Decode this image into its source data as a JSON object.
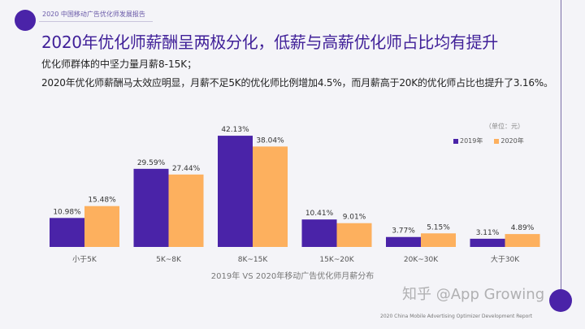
{
  "header": {
    "report_title": "2020 中国移动广告优化师发展报告",
    "headline": "2020年优化师薪酬呈两极分化，低薪与高薪优化师占比均有提升",
    "subtitle_1": "优化师群体的中坚力量月薪8-15K；",
    "subtitle_2": "2020年优化师薪酬马太效应明显，月薪不足5K的优化师比例增加4.5%，而月薪高于20K的优化师占比也提升了3.16%。"
  },
  "chart_data": {
    "type": "bar",
    "title": "2019年 VS 2020年移动广告优化师月薪分布",
    "unit_note": "（单位：元）",
    "categories": [
      "小于5K",
      "5K~8K",
      "8K~15K",
      "15K~20K",
      "20K~30K",
      "大于30K"
    ],
    "series": [
      {
        "name": "2019年",
        "color": "#4a23a8",
        "values": [
          10.98,
          29.59,
          42.13,
          10.41,
          3.77,
          3.11
        ],
        "labels": [
          "10.98%",
          "29.59%",
          "42.13%",
          "10.41%",
          "3.77%",
          "3.11%"
        ]
      },
      {
        "name": "2020年",
        "color": "#fdb05e",
        "values": [
          15.48,
          27.44,
          38.04,
          9.01,
          5.15,
          4.89
        ],
        "labels": [
          "15.48%",
          "27.44%",
          "38.04%",
          "9.01%",
          "5.15%",
          "4.89%"
        ]
      }
    ],
    "ylim": [
      0,
      45
    ],
    "grid": false,
    "legend_position": "top-right"
  },
  "footer": {
    "text": "2020 China Mobile Advertising Optimizer Development Report",
    "watermark": "知乎 @App Growing"
  }
}
